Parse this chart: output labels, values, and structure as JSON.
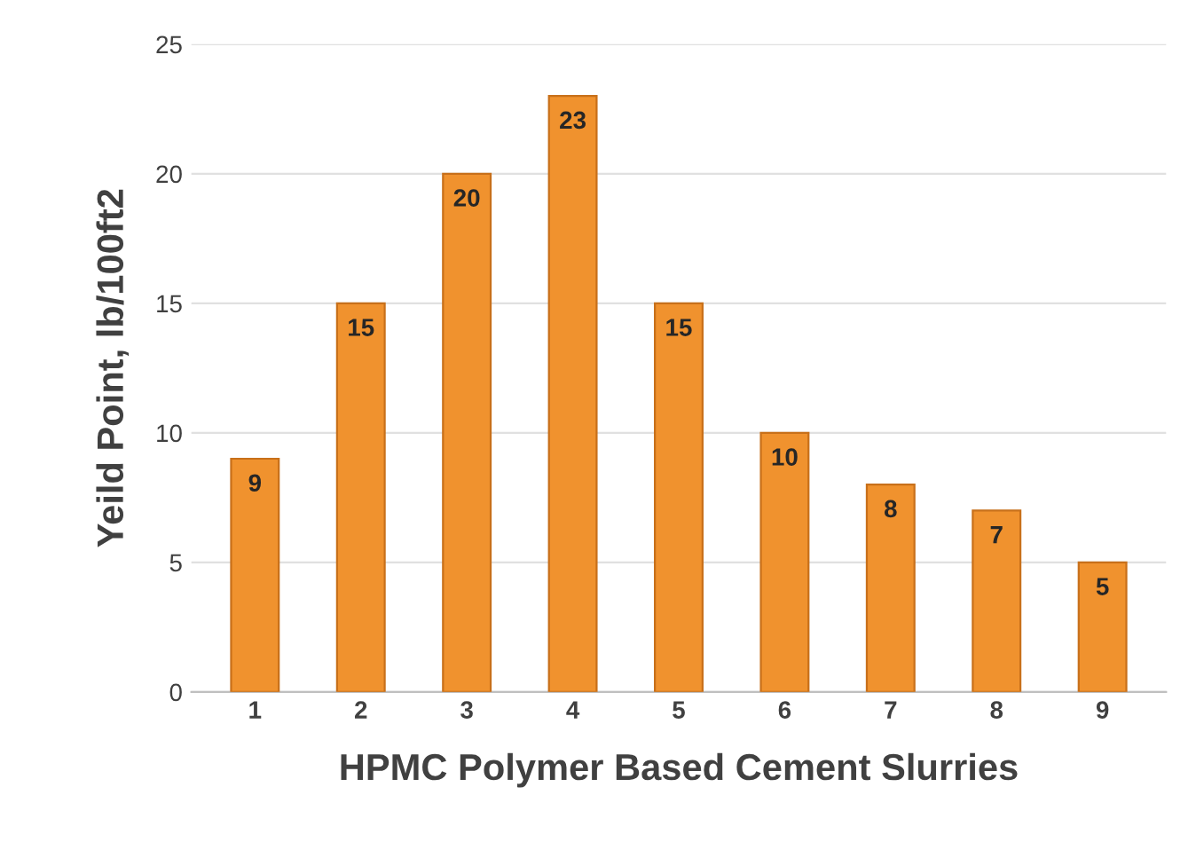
{
  "chart_data": {
    "type": "bar",
    "xlabel": "HPMC Polymer Based Cement Slurries",
    "ylabel": "Yeild Point, lb/100ft2",
    "categories": [
      "1",
      "2",
      "3",
      "4",
      "5",
      "6",
      "7",
      "8",
      "9"
    ],
    "values": [
      9,
      15,
      20,
      23,
      15,
      10,
      8,
      7,
      5
    ],
    "color": "#f0922e",
    "ylim": [
      0,
      25
    ],
    "yticks": [
      0,
      5,
      10,
      15,
      20,
      25
    ],
    "grid": "y",
    "data_labels": true,
    "legend": false
  }
}
